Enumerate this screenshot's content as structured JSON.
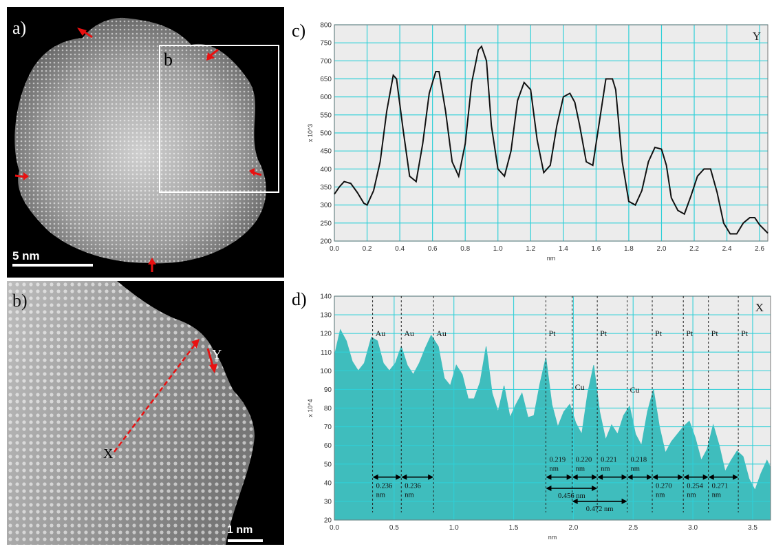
{
  "figure": {
    "panel_a": {
      "label": "a)",
      "box_label": "b",
      "scale_bar": "5 nm"
    },
    "panel_b": {
      "label": "b)",
      "x_label": "X",
      "y_label": "Y",
      "scale_bar": "1 nm"
    },
    "colors": {
      "grid": "#2fd0d8",
      "plot_bg": "#ececec",
      "fill_d": "#3fbdbd",
      "arrow": "#e81010"
    }
  },
  "chart_data": [
    {
      "panel_label": "c)",
      "type": "line",
      "corner_label": "Y",
      "xlabel": "nm",
      "ylabel": "x 10^3",
      "xlim": [
        0.0,
        2.65
      ],
      "ylim": [
        200,
        800
      ],
      "xticks": [
        "0.0",
        "0.2",
        "0.4",
        "0.6",
        "0.8",
        "1.0",
        "1.2",
        "1.4",
        "1.6",
        "1.8",
        "2.0",
        "2.2",
        "2.4",
        "2.6"
      ],
      "yticks": [
        "200",
        "250",
        "300",
        "350",
        "400",
        "450",
        "500",
        "550",
        "600",
        "650",
        "700",
        "750",
        "800"
      ],
      "grid": true,
      "series": [
        {
          "x": [
            0.0,
            0.03,
            0.06,
            0.1,
            0.14,
            0.18,
            0.2,
            0.24,
            0.28,
            0.32,
            0.36,
            0.38,
            0.42,
            0.46,
            0.5,
            0.54,
            0.58,
            0.62,
            0.64,
            0.68,
            0.72,
            0.76,
            0.8,
            0.84,
            0.88,
            0.9,
            0.93,
            0.96,
            1.0,
            1.04,
            1.08,
            1.12,
            1.16,
            1.2,
            1.24,
            1.28,
            1.32,
            1.36,
            1.4,
            1.44,
            1.47,
            1.5,
            1.54,
            1.58,
            1.62,
            1.66,
            1.7,
            1.72,
            1.76,
            1.8,
            1.84,
            1.88,
            1.92,
            1.96,
            2.0,
            2.03,
            2.06,
            2.1,
            2.14,
            2.18,
            2.22,
            2.26,
            2.3,
            2.34,
            2.38,
            2.42,
            2.46,
            2.5,
            2.54,
            2.57,
            2.6,
            2.65
          ],
          "y": [
            330,
            350,
            365,
            360,
            335,
            305,
            300,
            340,
            420,
            560,
            660,
            650,
            510,
            380,
            365,
            470,
            610,
            670,
            670,
            560,
            420,
            380,
            470,
            640,
            730,
            740,
            700,
            520,
            400,
            380,
            450,
            590,
            640,
            620,
            480,
            390,
            410,
            520,
            600,
            610,
            585,
            520,
            420,
            410,
            530,
            650,
            650,
            620,
            420,
            310,
            300,
            340,
            420,
            460,
            455,
            410,
            320,
            285,
            275,
            325,
            380,
            400,
            400,
            335,
            250,
            220,
            220,
            250,
            265,
            265,
            245,
            222
          ]
        }
      ]
    },
    {
      "panel_label": "d)",
      "type": "area",
      "corner_label": "X",
      "xlabel": "nm",
      "ylabel": "x 10^4",
      "xlim": [
        0.0,
        3.65
      ],
      "ylim": [
        20,
        140
      ],
      "xticks": [
        "0.0",
        "0.5",
        "1.0",
        "1.5",
        "2.0",
        "2.5",
        "3.0",
        "3.5"
      ],
      "yticks": [
        "20",
        "30",
        "40",
        "50",
        "60",
        "70",
        "80",
        "90",
        "100",
        "110",
        "120",
        "130",
        "140"
      ],
      "grid": true,
      "series": [
        {
          "x": [
            0.0,
            0.05,
            0.1,
            0.15,
            0.2,
            0.25,
            0.31,
            0.36,
            0.41,
            0.46,
            0.51,
            0.56,
            0.61,
            0.66,
            0.71,
            0.76,
            0.81,
            0.87,
            0.92,
            0.97,
            1.02,
            1.07,
            1.12,
            1.17,
            1.22,
            1.27,
            1.32,
            1.37,
            1.42,
            1.47,
            1.52,
            1.57,
            1.62,
            1.67,
            1.72,
            1.77,
            1.82,
            1.87,
            1.92,
            1.97,
            2.02,
            2.07,
            2.12,
            2.17,
            2.22,
            2.27,
            2.32,
            2.37,
            2.42,
            2.47,
            2.52,
            2.57,
            2.62,
            2.67,
            2.72,
            2.77,
            2.82,
            2.87,
            2.92,
            2.97,
            3.02,
            3.07,
            3.12,
            3.17,
            3.22,
            3.27,
            3.32,
            3.37,
            3.42,
            3.47,
            3.52,
            3.57,
            3.62,
            3.65
          ],
          "y": [
            108,
            122,
            116,
            105,
            100,
            104,
            118,
            116,
            104,
            100,
            104,
            113,
            103,
            98,
            104,
            112,
            119,
            113,
            96,
            92,
            103,
            98,
            85,
            85,
            94,
            113,
            88,
            78,
            92,
            75,
            82,
            88,
            75,
            76,
            93,
            107,
            82,
            70,
            78,
            82,
            72,
            66,
            88,
            103,
            78,
            63,
            71,
            66,
            76,
            81,
            66,
            60,
            78,
            90,
            70,
            56,
            62,
            66,
            70,
            73,
            64,
            52,
            58,
            71,
            60,
            46,
            52,
            57,
            54,
            42,
            36,
            45,
            52,
            48
          ]
        }
      ],
      "annotations": {
        "elements": [
          {
            "x": 0.32,
            "label": "Au"
          },
          {
            "x": 0.56,
            "label": "Au"
          },
          {
            "x": 0.83,
            "label": "Au"
          },
          {
            "x": 1.77,
            "label": "Pt"
          },
          {
            "x": 2.2,
            "label": "Pt"
          },
          {
            "x": 2.66,
            "label": "Pt"
          },
          {
            "x": 2.92,
            "label": "Pt"
          },
          {
            "x": 3.13,
            "label": "Pt"
          },
          {
            "x": 3.38,
            "label": "Pt"
          },
          {
            "x": 1.99,
            "label": "Cu"
          },
          {
            "x": 2.45,
            "label": "Cu"
          }
        ],
        "spacings": [
          {
            "x1": 0.32,
            "x2": 0.56,
            "y": 43,
            "value": "0.236",
            "unit": "nm"
          },
          {
            "x1": 0.56,
            "x2": 0.83,
            "y": 43,
            "value": "0.236",
            "unit": "nm"
          },
          {
            "x1": 1.77,
            "x2": 1.99,
            "y": 43,
            "value": "0.219",
            "unit": "nm"
          },
          {
            "x1": 1.99,
            "x2": 2.2,
            "y": 43,
            "value": "0.220",
            "unit": "nm"
          },
          {
            "x1": 2.2,
            "x2": 2.45,
            "y": 43,
            "value": "0.221",
            "unit": "nm"
          },
          {
            "x1": 2.45,
            "x2": 2.66,
            "y": 43,
            "value": "0.218",
            "unit": "nm"
          },
          {
            "x1": 2.66,
            "x2": 2.92,
            "y": 43,
            "value": "0.270",
            "unit": "nm"
          },
          {
            "x1": 2.92,
            "x2": 3.13,
            "y": 43,
            "value": "0.254",
            "unit": "nm"
          },
          {
            "x1": 3.13,
            "x2": 3.38,
            "y": 43,
            "value": "0.271",
            "unit": "nm"
          },
          {
            "x1": 1.77,
            "x2": 2.2,
            "y": 37,
            "value": "0.456 nm",
            "unit": ""
          },
          {
            "x1": 1.99,
            "x2": 2.45,
            "y": 30,
            "value": "0.472 nm",
            "unit": ""
          }
        ]
      }
    }
  ]
}
